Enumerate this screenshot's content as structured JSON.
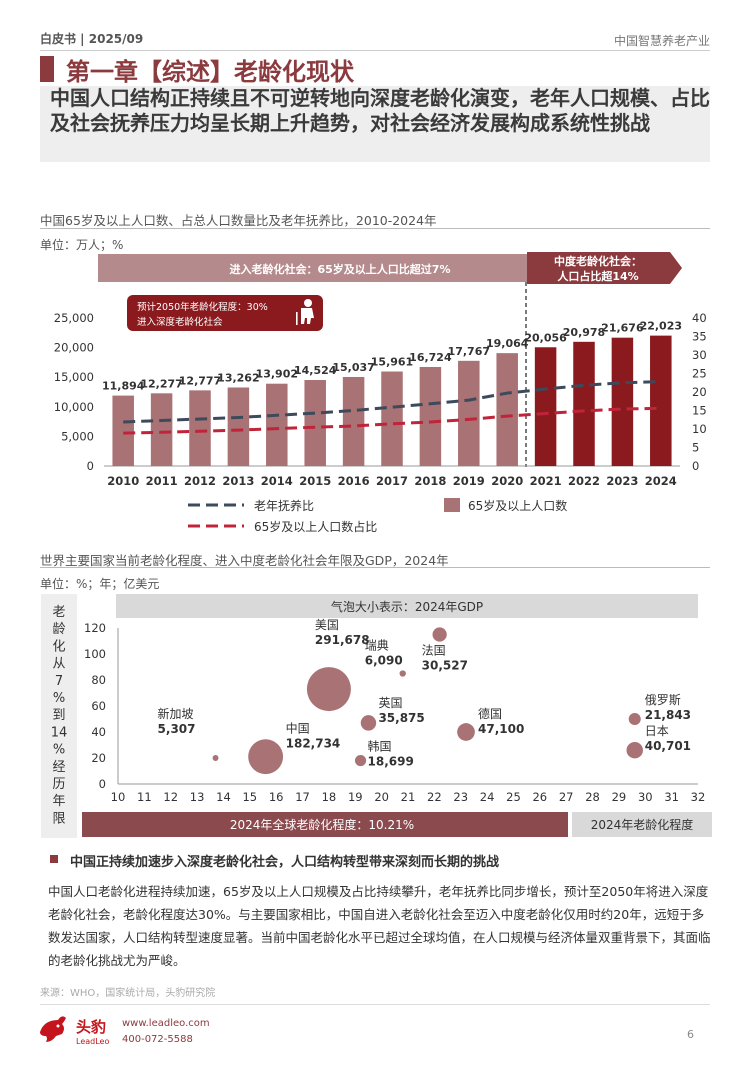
{
  "header": {
    "left": "白皮书 | 2025/09",
    "right": "中国智慧养老产业"
  },
  "chapter": {
    "title": "第一章【综述】老龄化现状"
  },
  "headline": "中国人口结构正持续且不可逆转地向深度老龄化演变，老年人口规模、占比及社会抚养压力均呈长期上升趋势，对社会经济发展构成系统性挑战",
  "colors": {
    "brand": "#8b3a3e",
    "bar_light": "#a97274",
    "bar_dark": "#8b1a1e",
    "dependency_line": "#3d4a5c",
    "share_line": "#c0243a",
    "bubble": "#a97274"
  },
  "chart1": {
    "section_title": "中国65岁及以上人口数、占总人口数量比及老年抚养比，2010-2024年",
    "unit": "单位：万人；%",
    "banner_left": "进入老龄化社会：65岁及以上人口比超过7%",
    "banner_right_1": "中度老龄化社会：",
    "banner_right_2": "人口占比超14%",
    "callout_1": "预计2050年老龄化程度：30%",
    "callout_2": "进入深度老龄化社会",
    "icon": "elderly-person-icon",
    "legend": {
      "dependency": "老年抚养比",
      "share": "65岁及以上人口数占比",
      "bars": "65岁及以上人口数"
    }
  },
  "chart2": {
    "section_title": "世界主要国家当前老龄化程度、进入中度老龄化社会年限及GDP，2024年",
    "unit": "单位：%；年；亿美元",
    "bubble_note": "气泡大小表示：2024年GDP",
    "yaxis_title": [
      "老",
      "龄",
      "化",
      "从",
      "7",
      "%",
      "到",
      "14",
      "%",
      "经",
      "历",
      "年",
      "限"
    ],
    "global_label": "2024年全球老龄化程度：10.21%",
    "xaxis_label": "2024年老龄化程度"
  },
  "chart_data": [
    {
      "type": "bar+line",
      "title": "中国65岁及以上人口数、占总人口数量比及老年抚养比，2010-2024年",
      "categories": [
        "2010",
        "2011",
        "2012",
        "2013",
        "2014",
        "2015",
        "2016",
        "2017",
        "2018",
        "2019",
        "2020",
        "2021",
        "2022",
        "2023",
        "2024"
      ],
      "bar_series": {
        "name": "65岁及以上人口数",
        "values": [
          11894,
          12277,
          12777,
          13262,
          13902,
          14524,
          15037,
          15961,
          16724,
          17767,
          19064,
          20056,
          20978,
          21676,
          22023
        ],
        "labels": [
          "11,894",
          "12,277",
          "12,777",
          "13,262",
          "13,902",
          "14,524",
          "15,037",
          "15,961",
          "16,724",
          "17,767",
          "19,064",
          "20,056",
          "20,978",
          "21,676",
          "22,023"
        ]
      },
      "line_series": [
        {
          "name": "老年抚养比",
          "values": [
            11.9,
            12.3,
            12.7,
            13.1,
            13.7,
            14.3,
            15.0,
            15.9,
            16.8,
            17.8,
            19.7,
            20.8,
            21.8,
            22.5,
            22.8
          ]
        },
        {
          "name": "65岁及以上人口数占比",
          "values": [
            8.9,
            9.1,
            9.4,
            9.7,
            10.1,
            10.5,
            10.8,
            11.4,
            11.9,
            12.6,
            13.5,
            14.2,
            14.9,
            15.4,
            15.6
          ]
        }
      ],
      "y_left": {
        "min": 0,
        "max": 25000,
        "ticks": [
          "0",
          "5,000",
          "10,000",
          "15,000",
          "20,000",
          "25,000"
        ]
      },
      "y_right": {
        "min": 0,
        "max": 40,
        "ticks": [
          "0",
          "5",
          "10",
          "15",
          "20",
          "25",
          "30",
          "35",
          "40"
        ]
      },
      "split_after": "2020"
    },
    {
      "type": "scatter",
      "title": "世界主要国家当前老龄化程度、进入中度老龄化社会年限及GDP，2024年",
      "xlim": [
        10,
        32
      ],
      "ylim": [
        0,
        120
      ],
      "x_ticks": [
        "10",
        "11",
        "12",
        "13",
        "14",
        "15",
        "16",
        "17",
        "18",
        "19",
        "20",
        "21",
        "22",
        "23",
        "24",
        "25",
        "26",
        "27",
        "28",
        "29",
        "30",
        "31",
        "32"
      ],
      "y_ticks": [
        "0",
        "20",
        "40",
        "60",
        "80",
        "100",
        "120"
      ],
      "points": [
        {
          "name": "新加坡",
          "gdp": "5,307",
          "x": 13.7,
          "y": 20,
          "size": 5307
        },
        {
          "name": "中国",
          "gdp": "182,734",
          "x": 15.6,
          "y": 21,
          "size": 182734
        },
        {
          "name": "美国",
          "gdp": "291,678",
          "x": 18.0,
          "y": 73,
          "size": 291678
        },
        {
          "name": "瑞典",
          "gdp": "6,090",
          "x": 20.8,
          "y": 85,
          "size": 6090
        },
        {
          "name": "英国",
          "gdp": "35,875",
          "x": 19.5,
          "y": 47,
          "size": 35875
        },
        {
          "name": "韩国",
          "gdp": "18,699",
          "x": 19.2,
          "y": 18,
          "size": 18699
        },
        {
          "name": "法国",
          "gdp": "30,527",
          "x": 22.2,
          "y": 115,
          "size": 30527
        },
        {
          "name": "德国",
          "gdp": "47,100",
          "x": 23.2,
          "y": 40,
          "size": 47100
        },
        {
          "name": "俄罗斯",
          "gdp": "21,843",
          "x": 29.6,
          "y": 50,
          "size": 21843
        },
        {
          "name": "日本",
          "gdp": "40,701",
          "x": 29.6,
          "y": 26,
          "size": 40701
        }
      ]
    }
  ],
  "insight": {
    "title": "中国正持续加速步入深度老龄化社会，人口结构转型带来深刻而长期的挑战",
    "body": "中国人口老龄化进程持续加速，65岁及以上人口规模及占比持续攀升，老年抚养比同步增长，预计至2050年将进入深度老龄化社会，老龄化程度达30%。与主要国家相比，中国自进入老龄化社会至迈入中度老龄化仅用时约20年，远短于多数发达国家，人口结构转型速度显著。当前中国老龄化水平已超过全球均值，在人口规模与经济体量双重背景下，其面临的老龄化挑战尤为严峻。"
  },
  "footer": {
    "source": "来源：WHO，国家统计局，头豹研究院",
    "logo_cn": "头豹",
    "logo_en": "LeadLeo",
    "website": "www.leadleo.com",
    "phone": "400-072-5588",
    "page": "6"
  }
}
